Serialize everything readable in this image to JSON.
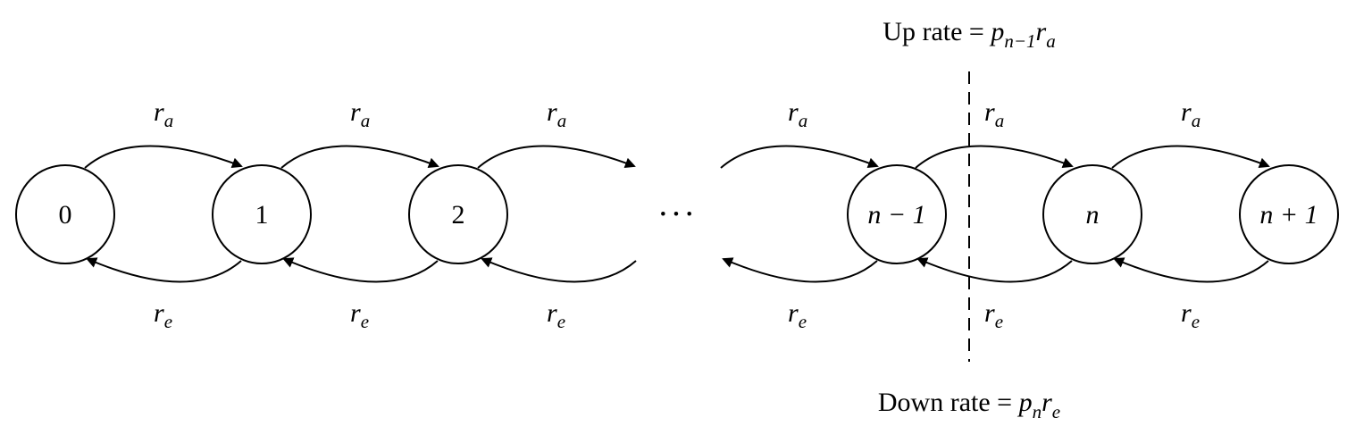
{
  "states": [
    {
      "id": "s0",
      "label": "0"
    },
    {
      "id": "s1",
      "label": "1"
    },
    {
      "id": "s2",
      "label": "2"
    },
    {
      "id": "sn1",
      "label": "n − 1"
    },
    {
      "id": "sn",
      "label": "n"
    },
    {
      "id": "snp1",
      "label": "n + 1"
    }
  ],
  "ellipsis": "···",
  "arrival_rate": {
    "symbol": "r",
    "subscript": "a"
  },
  "exit_rate": {
    "symbol": "r",
    "subscript": "e"
  },
  "up_rate": {
    "prefix": "Up rate = ",
    "p": "p",
    "p_sub": "n−1",
    "r": "r",
    "r_sub": "a"
  },
  "down_rate": {
    "prefix": "Down rate = ",
    "p": "p",
    "p_sub": "n",
    "r": "r",
    "r_sub": "e"
  }
}
